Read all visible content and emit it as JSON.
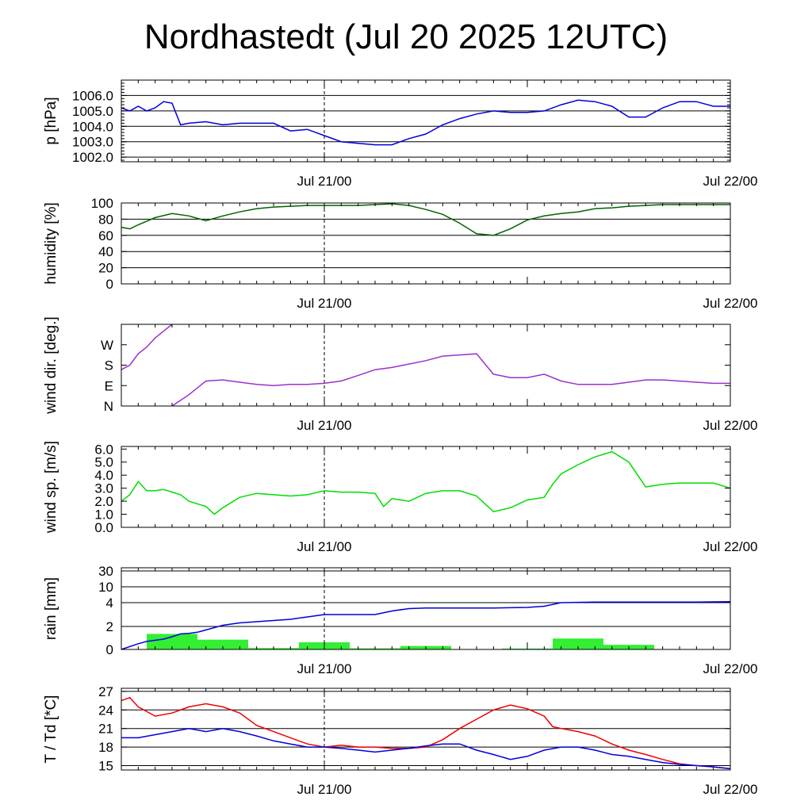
{
  "title": "Nordhastedt (Jul 20 2025 12UTC)",
  "x_tick_labels": [
    "Jul 21/00",
    "Jul 22/00"
  ],
  "chart_data": [
    {
      "type": "line",
      "ylabel": "p [hPa]",
      "ylim": [
        1001.7,
        1007.0
      ],
      "yticks": [
        "1002.0",
        "1003.0",
        "1004.0",
        "1005.0",
        "1006.0"
      ],
      "grid": true,
      "x_unit": "hours since Jul 20 12UTC",
      "xlim": [
        0,
        36
      ],
      "series": [
        {
          "color": "#0000dd",
          "x": [
            0,
            0.5,
            1,
            1.5,
            2,
            2.5,
            3,
            3.5,
            4,
            5,
            6,
            7,
            8,
            9,
            10,
            11,
            12,
            13,
            14,
            15,
            16,
            17,
            18,
            19,
            20,
            21,
            22,
            23,
            24,
            25,
            26,
            27,
            28,
            29,
            30,
            31,
            32,
            33,
            34,
            35,
            36
          ],
          "y": [
            1005.2,
            1005.0,
            1005.3,
            1005.0,
            1005.2,
            1005.6,
            1005.5,
            1004.1,
            1004.2,
            1004.3,
            1004.1,
            1004.2,
            1004.2,
            1004.2,
            1003.7,
            1003.8,
            1003.4,
            1003.0,
            1002.9,
            1002.8,
            1002.8,
            1003.2,
            1003.5,
            1004.1,
            1004.5,
            1004.8,
            1005.0,
            1004.9,
            1004.9,
            1005.0,
            1005.4,
            1005.7,
            1005.6,
            1005.3,
            1004.6,
            1004.6,
            1005.2,
            1005.6,
            1005.6,
            1005.3,
            1005.3
          ]
        }
      ]
    },
    {
      "type": "line",
      "ylabel": "humidity [%]",
      "ylim": [
        0,
        100
      ],
      "yticks": [
        "0",
        "20",
        "40",
        "60",
        "80",
        "100"
      ],
      "grid": true,
      "xlim": [
        0,
        36
      ],
      "series": [
        {
          "color": "#006400",
          "x": [
            0,
            0.5,
            1,
            2,
            3,
            4,
            5,
            6,
            7,
            8,
            9,
            10,
            11,
            12,
            13,
            14,
            15,
            16,
            17,
            18,
            19,
            20,
            21,
            22,
            23,
            24,
            25,
            26,
            27,
            28,
            29,
            30,
            31,
            32,
            33,
            34,
            35,
            36
          ],
          "y": [
            70,
            68,
            73,
            82,
            87,
            84,
            78,
            84,
            89,
            93,
            95,
            96,
            97,
            97,
            97,
            97,
            98,
            99,
            97,
            92,
            86,
            75,
            62,
            60,
            68,
            79,
            84,
            87,
            89,
            93,
            94,
            96,
            97,
            98,
            98,
            98,
            98,
            98
          ]
        }
      ]
    },
    {
      "type": "line",
      "ylabel": "wind dir. [deg.]",
      "ylim": [
        0,
        360
      ],
      "ytick_values": [
        0,
        90,
        180,
        270
      ],
      "yticks": [
        "N",
        "E",
        "S",
        "W"
      ],
      "grid": false,
      "xlim": [
        0,
        36
      ],
      "series": [
        {
          "color": "#9932cc",
          "x": [
            0,
            0.5,
            1,
            1.5,
            2,
            2.5,
            3
          ],
          "y": [
            160,
            180,
            230,
            260,
            300,
            330,
            360
          ]
        },
        {
          "color": "#9932cc",
          "x": [
            3,
            4,
            5,
            6,
            7,
            8,
            9,
            10,
            11,
            12,
            13,
            14,
            15,
            16,
            17,
            18,
            19,
            20,
            21,
            22,
            23,
            24,
            25,
            26,
            27,
            28,
            29,
            30,
            31,
            32,
            33,
            34,
            35,
            36
          ],
          "y": [
            0,
            50,
            110,
            115,
            105,
            95,
            90,
            95,
            95,
            100,
            110,
            135,
            160,
            170,
            185,
            200,
            220,
            225,
            230,
            140,
            125,
            125,
            140,
            110,
            95,
            95,
            95,
            105,
            115,
            115,
            110,
            105,
            100,
            100
          ]
        }
      ]
    },
    {
      "type": "line",
      "ylabel": "wind sp. [m/s]",
      "ylim": [
        0,
        6.2
      ],
      "yticks": [
        "0.0",
        "1.0",
        "2.0",
        "3.0",
        "4.0",
        "5.0",
        "6.0"
      ],
      "grid": false,
      "xlim": [
        0,
        36
      ],
      "series": [
        {
          "color": "#00dd00",
          "x": [
            0,
            0.5,
            1,
            1.5,
            2,
            2.5,
            3,
            3.5,
            4,
            5,
            5.5,
            6,
            7,
            8,
            9,
            10,
            11,
            12,
            13,
            14,
            15,
            15.5,
            16,
            17,
            18,
            19,
            20,
            21,
            22,
            23,
            24,
            25,
            25.5,
            26,
            27,
            28,
            29,
            30,
            31,
            32,
            33,
            34,
            35,
            36
          ],
          "y": [
            2.0,
            2.5,
            3.5,
            2.8,
            2.8,
            2.9,
            2.7,
            2.5,
            2.0,
            1.6,
            1.0,
            1.5,
            2.3,
            2.6,
            2.5,
            2.4,
            2.5,
            2.8,
            2.7,
            2.7,
            2.6,
            1.6,
            2.2,
            2.0,
            2.6,
            2.8,
            2.8,
            2.4,
            1.2,
            1.5,
            2.1,
            2.3,
            3.3,
            4.1,
            4.8,
            5.4,
            5.8,
            5.0,
            3.1,
            3.3,
            3.4,
            3.4,
            3.4,
            3.0
          ]
        }
      ]
    },
    {
      "type": "bar",
      "ylabel": "rain [mm]",
      "yticks": [
        "0",
        "2",
        "4",
        "10",
        "30"
      ],
      "ytick_values": [
        0,
        2,
        4,
        10,
        30
      ],
      "scale": "piecewise (quasi-log)",
      "grid": true,
      "xlim": [
        0,
        36
      ],
      "bars": {
        "color": "#33ee33",
        "x_start": [
          1.5,
          4.5,
          7.5,
          10.5,
          13.5,
          16.5,
          19.5,
          22.5,
          25.5,
          28.5,
          31.5
        ],
        "x_end": [
          4.5,
          7.5,
          10.5,
          13.5,
          16.5,
          19.5,
          22.5,
          25.5,
          28.5,
          31.5,
          34.5
        ],
        "values": [
          1.35,
          0.85,
          0.12,
          0.62,
          0.1,
          0.3,
          0.0,
          0.08,
          0.95,
          0.4,
          0.0
        ]
      },
      "series": [
        {
          "name": "accumulated",
          "color": "#0000dd",
          "x": [
            0,
            1,
            1.5,
            2.5,
            3,
            3.5,
            4,
            4.5,
            5,
            5.5,
            6,
            7,
            8,
            9,
            10,
            11,
            12,
            13,
            14,
            15,
            16,
            17,
            18,
            19,
            20,
            22,
            24,
            25,
            26,
            28,
            30,
            32,
            34,
            36
          ],
          "y": [
            0,
            0.5,
            0.7,
            0.9,
            1.1,
            1.35,
            1.4,
            1.5,
            1.7,
            1.9,
            2.1,
            2.3,
            2.4,
            2.5,
            2.6,
            2.8,
            3.0,
            3.0,
            3.0,
            3.0,
            3.3,
            3.5,
            3.55,
            3.55,
            3.55,
            3.55,
            3.6,
            3.7,
            4.0,
            4.2,
            4.25,
            4.25,
            4.25,
            4.35
          ]
        }
      ]
    },
    {
      "type": "line",
      "ylabel": "T / Td [*C]",
      "ylim": [
        14.3,
        27.5
      ],
      "yticks": [
        "15",
        "18",
        "21",
        "24",
        "27"
      ],
      "grid": true,
      "xlim": [
        0,
        36
      ],
      "series": [
        {
          "name": "T",
          "color": "#ee0000",
          "x": [
            0,
            0.5,
            1,
            2,
            3,
            4,
            5,
            6,
            7,
            8,
            9,
            10,
            11,
            12,
            13,
            14,
            15,
            16,
            17,
            18,
            19,
            20,
            21,
            22,
            23,
            24,
            25,
            25.5,
            26,
            27,
            28,
            29,
            30,
            31,
            32,
            33,
            34,
            35,
            36
          ],
          "y": [
            25.5,
            26,
            24.5,
            23,
            23.5,
            24.5,
            25,
            24.5,
            23.5,
            21.5,
            20.5,
            19.5,
            18.5,
            18,
            18.3,
            18,
            18,
            17.8,
            17.8,
            18,
            19.2,
            21,
            22.5,
            24,
            24.8,
            24.2,
            23,
            21.3,
            21,
            20.5,
            19.8,
            18.5,
            17.5,
            16.8,
            16,
            15.3,
            15,
            14.8,
            14.5
          ]
        },
        {
          "name": "Td",
          "color": "#0000dd",
          "x": [
            0,
            1,
            2,
            3,
            4,
            5,
            6,
            7,
            8,
            9,
            10,
            11,
            12,
            13,
            14,
            15,
            16,
            17,
            18,
            19,
            20,
            21,
            22,
            23,
            24,
            25,
            26,
            27,
            28,
            29,
            30,
            31,
            32,
            33,
            34,
            35,
            36
          ],
          "y": [
            19.5,
            19.5,
            20,
            20.5,
            21,
            20.5,
            21,
            20.5,
            19.8,
            19,
            18.5,
            18,
            18,
            17.8,
            17.5,
            17.2,
            17.5,
            17.8,
            18.2,
            18.5,
            18.5,
            17.5,
            16.8,
            16,
            16.5,
            17.5,
            18,
            18,
            17.5,
            16.8,
            16.5,
            16,
            15.5,
            15.2,
            15,
            14.8,
            14.5
          ]
        }
      ]
    }
  ]
}
